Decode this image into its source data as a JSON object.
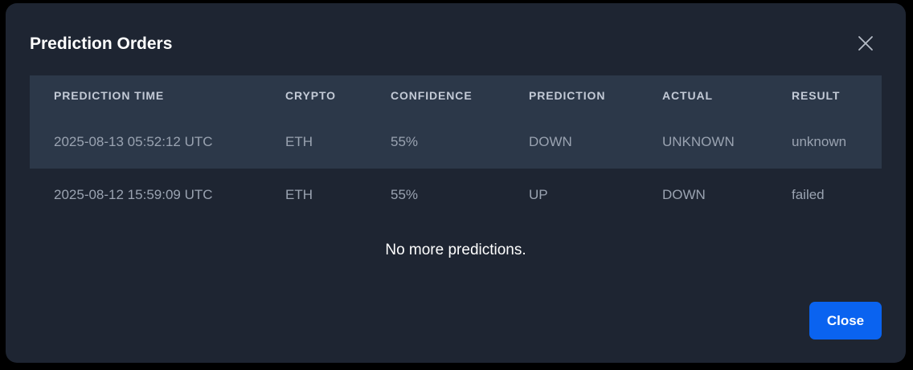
{
  "modal": {
    "title": "Prediction Orders",
    "close_icon": "close-icon",
    "empty_message": "No more predictions.",
    "close_label": "Close"
  },
  "table": {
    "headers": [
      "PREDICTION TIME",
      "CRYPTO",
      "CONFIDENCE",
      "PREDICTION",
      "ACTUAL",
      "RESULT"
    ],
    "rows": [
      [
        "2025-08-13 05:52:12 UTC",
        "ETH",
        "55%",
        "DOWN",
        "UNKNOWN",
        "unknown"
      ],
      [
        "2025-08-12 15:59:09 UTC",
        "ETH",
        "55%",
        "UP",
        "DOWN",
        "failed"
      ]
    ]
  },
  "colors": {
    "backdrop": "#000000",
    "modal_bg": "#1e2532",
    "header_bg": "#2c3849",
    "accent": "#0a63f0"
  }
}
